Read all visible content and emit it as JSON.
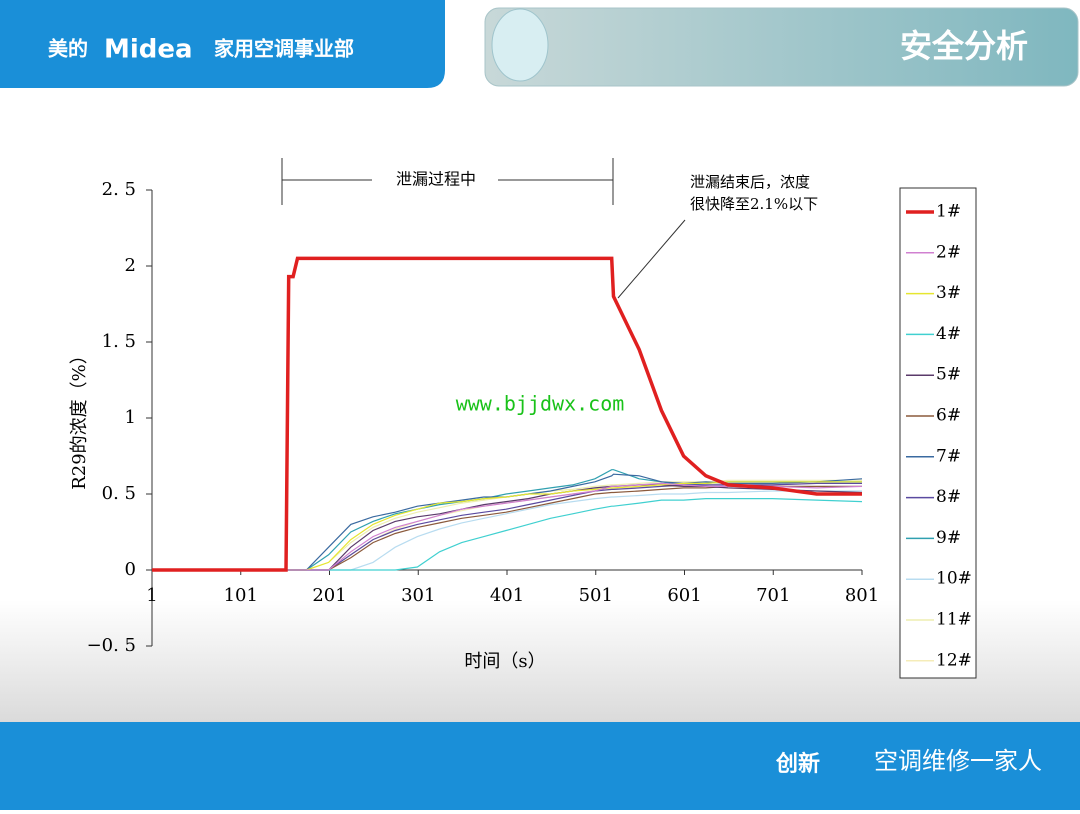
{
  "header": {
    "brand": "美的",
    "logo": "Midea",
    "division": "家用空调事业部",
    "title": "安全分析"
  },
  "watermark": "www.bjjdwx.com",
  "footer": {
    "slogan": "创新",
    "account": "空调维修一家人"
  },
  "chart_data": {
    "type": "line",
    "y_label": "R29的浓度（%）",
    "x_label": "时间（s）",
    "annotation_leak": "泄漏过程中",
    "annotation_after": [
      "泄漏结束后，浓度",
      "很快降至2.1%以下"
    ],
    "x": [
      1,
      152,
      155,
      160,
      165,
      175,
      200,
      225,
      250,
      275,
      300,
      325,
      350,
      375,
      400,
      425,
      450,
      475,
      500,
      519,
      521,
      550,
      575,
      600,
      625,
      650,
      700,
      750,
      801
    ],
    "xlim": [
      1,
      801
    ],
    "xticks": [
      1,
      101,
      201,
      301,
      401,
      501,
      601,
      701,
      801
    ],
    "ylim": [
      -0.5,
      2.5
    ],
    "yticks": [
      {
        "value": -0.5,
        "label": "−0. 5"
      },
      0,
      {
        "value": 0.5,
        "label": "0. 5"
      },
      1,
      {
        "value": 1.5,
        "label": "1. 5"
      },
      2,
      {
        "value": 2.5,
        "label": "2. 5"
      }
    ],
    "legend": "right",
    "series": [
      {
        "name": "1#",
        "color": "#e02020",
        "values": [
          0,
          0,
          1.93,
          1.93,
          2.05,
          2.05,
          2.05,
          2.05,
          2.05,
          2.05,
          2.05,
          2.05,
          2.05,
          2.05,
          2.05,
          2.05,
          2.05,
          2.05,
          2.05,
          2.05,
          1.8,
          1.45,
          1.05,
          0.75,
          0.62,
          0.56,
          0.54,
          0.5,
          0.5
        ]
      },
      {
        "name": "2#",
        "color": "#d080d0",
        "values": [
          0,
          0,
          0,
          0,
          0,
          0,
          0,
          0.12,
          0.22,
          0.28,
          0.32,
          0.36,
          0.4,
          0.42,
          0.44,
          0.46,
          0.48,
          0.5,
          0.52,
          0.55,
          0.55,
          0.56,
          0.57,
          0.56,
          0.55,
          0.55,
          0.55,
          0.54,
          0.55
        ]
      },
      {
        "name": "3#",
        "color": "#e6e630",
        "values": [
          0,
          0,
          0,
          0,
          0,
          0,
          0.05,
          0.2,
          0.3,
          0.36,
          0.4,
          0.44,
          0.45,
          0.47,
          0.48,
          0.5,
          0.5,
          0.52,
          0.53,
          0.54,
          0.54,
          0.55,
          0.56,
          0.57,
          0.57,
          0.58,
          0.58,
          0.58,
          0.58
        ]
      },
      {
        "name": "4#",
        "color": "#40d0d0",
        "values": [
          0,
          0,
          0,
          0,
          0,
          0,
          0,
          0,
          0,
          0,
          0.02,
          0.12,
          0.18,
          0.22,
          0.26,
          0.3,
          0.34,
          0.37,
          0.4,
          0.42,
          0.42,
          0.44,
          0.46,
          0.46,
          0.47,
          0.47,
          0.47,
          0.46,
          0.45
        ]
      },
      {
        "name": "5#",
        "color": "#5a3a6a",
        "values": [
          0,
          0,
          0,
          0,
          0,
          0,
          0,
          0.15,
          0.26,
          0.32,
          0.35,
          0.37,
          0.4,
          0.43,
          0.45,
          0.47,
          0.5,
          0.52,
          0.54,
          0.55,
          0.55,
          0.56,
          0.56,
          0.55,
          0.55,
          0.54,
          0.53,
          0.52,
          0.51
        ]
      },
      {
        "name": "6#",
        "color": "#8b5a3c",
        "values": [
          0,
          0,
          0,
          0,
          0,
          0,
          0,
          0.08,
          0.18,
          0.24,
          0.28,
          0.31,
          0.34,
          0.36,
          0.38,
          0.41,
          0.44,
          0.47,
          0.5,
          0.51,
          0.51,
          0.52,
          0.53,
          0.54,
          0.54,
          0.55,
          0.55,
          0.55,
          0.55
        ]
      },
      {
        "name": "7#",
        "color": "#3a6aa0",
        "values": [
          0,
          0,
          0,
          0,
          0,
          0,
          0.15,
          0.3,
          0.35,
          0.38,
          0.42,
          0.44,
          0.46,
          0.48,
          0.48,
          0.5,
          0.52,
          0.55,
          0.58,
          0.62,
          0.63,
          0.62,
          0.58,
          0.57,
          0.58,
          0.57,
          0.57,
          0.58,
          0.6
        ]
      },
      {
        "name": "8#",
        "color": "#5a4aa0",
        "values": [
          0,
          0,
          0,
          0,
          0,
          0,
          0,
          0.1,
          0.2,
          0.26,
          0.3,
          0.33,
          0.36,
          0.38,
          0.4,
          0.43,
          0.46,
          0.49,
          0.52,
          0.53,
          0.53,
          0.54,
          0.55,
          0.56,
          0.56,
          0.56,
          0.56,
          0.57,
          0.57
        ]
      },
      {
        "name": "9#",
        "color": "#30a0b0",
        "values": [
          0,
          0,
          0,
          0,
          0,
          0,
          0.1,
          0.25,
          0.32,
          0.37,
          0.4,
          0.43,
          0.45,
          0.47,
          0.5,
          0.52,
          0.54,
          0.56,
          0.6,
          0.66,
          0.66,
          0.6,
          0.58,
          0.56,
          0.57,
          0.58,
          0.58,
          0.58,
          0.58
        ]
      },
      {
        "name": "10#",
        "color": "#b8dcf0",
        "values": [
          0,
          0,
          0,
          0,
          0,
          0,
          0,
          0,
          0.05,
          0.15,
          0.22,
          0.27,
          0.31,
          0.34,
          0.37,
          0.4,
          0.43,
          0.45,
          0.47,
          0.48,
          0.48,
          0.49,
          0.5,
          0.5,
          0.51,
          0.51,
          0.52,
          0.52,
          0.52
        ]
      },
      {
        "name": "11#",
        "color": "#eeeeb0",
        "values": [
          0,
          0,
          0,
          0,
          0,
          0,
          0.05,
          0.18,
          0.28,
          0.34,
          0.38,
          0.41,
          0.44,
          0.46,
          0.48,
          0.5,
          0.52,
          0.53,
          0.55,
          0.56,
          0.56,
          0.57,
          0.58,
          0.58,
          0.58,
          0.59,
          0.59,
          0.59,
          0.59
        ]
      },
      {
        "name": "12#",
        "color": "#f5ecb8",
        "values": [
          0,
          0,
          0,
          0,
          0,
          0,
          0,
          0.1,
          0.2,
          0.27,
          0.32,
          0.36,
          0.39,
          0.42,
          0.44,
          0.46,
          0.48,
          0.5,
          0.52,
          0.53,
          0.53,
          0.54,
          0.55,
          0.55,
          0.56,
          0.56,
          0.56,
          0.57,
          0.57
        ]
      }
    ]
  }
}
